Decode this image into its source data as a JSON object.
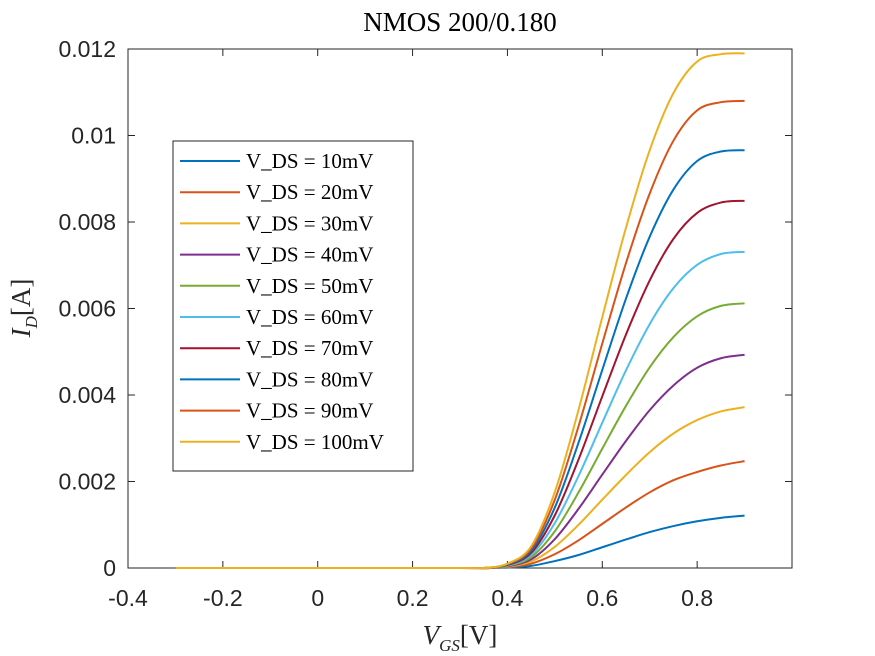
{
  "chart_data": {
    "type": "line",
    "title": "NMOS 200/0.180",
    "xlabel": "V_GS[V]",
    "ylabel": "I_D[A]",
    "xlim": [
      -0.4,
      1.0
    ],
    "ylim": [
      0,
      0.012
    ],
    "xticks": [
      -0.4,
      -0.2,
      0,
      0.2,
      0.4,
      0.6,
      0.8
    ],
    "xtick_labels": [
      "-0.4",
      "-0.2",
      "0",
      "0.2",
      "0.4",
      "0.6",
      "0.8"
    ],
    "yticks": [
      0,
      0.002,
      0.004,
      0.006,
      0.008,
      0.01,
      0.012
    ],
    "ytick_labels": [
      "0",
      "0.002",
      "0.004",
      "0.006",
      "0.008",
      "0.01",
      "0.012"
    ],
    "grid": false,
    "legend_position": "left",
    "x": [
      -0.3,
      0.3,
      0.35,
      0.4,
      0.45,
      0.5,
      0.55,
      0.6,
      0.65,
      0.7,
      0.75,
      0.8,
      0.85,
      0.9
    ],
    "series": [
      {
        "name": "V_DS = 10mV",
        "color": "#0072BD",
        "values": [
          0,
          0,
          0,
          1e-05,
          5e-05,
          0.00016,
          0.0003,
          0.00048,
          0.00066,
          0.00083,
          0.00097,
          0.00108,
          0.00116,
          0.00121
        ]
      },
      {
        "name": "V_DS = 20mV",
        "color": "#D95319",
        "values": [
          0,
          0,
          0,
          2e-05,
          0.0001,
          0.00032,
          0.00064,
          0.00102,
          0.0014,
          0.00175,
          0.00203,
          0.00222,
          0.00237,
          0.00247
        ]
      },
      {
        "name": "V_DS = 30mV",
        "color": "#EDB120",
        "values": [
          0,
          0,
          0,
          3e-05,
          0.00015,
          0.00049,
          0.001,
          0.00158,
          0.00215,
          0.00268,
          0.00311,
          0.00342,
          0.00362,
          0.00372
        ]
      },
      {
        "name": "V_DS = 40mV",
        "color": "#7E2F8E",
        "values": [
          0,
          0,
          0,
          4e-05,
          0.0002,
          0.00067,
          0.00137,
          0.00216,
          0.00294,
          0.00365,
          0.00422,
          0.00463,
          0.00485,
          0.00493
        ]
      },
      {
        "name": "V_DS = 50mV",
        "color": "#77AC30",
        "values": [
          0,
          0,
          0,
          5e-05,
          0.00025,
          0.00085,
          0.00175,
          0.00276,
          0.00375,
          0.00464,
          0.00534,
          0.00582,
          0.00606,
          0.00612
        ]
      },
      {
        "name": "V_DS = 60mV",
        "color": "#4DBEEE",
        "values": [
          0,
          0,
          0,
          6e-05,
          0.0003,
          0.00104,
          0.00213,
          0.00336,
          0.00457,
          0.00564,
          0.00647,
          0.00701,
          0.00726,
          0.00731
        ]
      },
      {
        "name": "V_DS = 70mV",
        "color": "#A2142F",
        "values": [
          0,
          0,
          0,
          7e-05,
          0.00035,
          0.00122,
          0.00251,
          0.00397,
          0.0054,
          0.00665,
          0.00761,
          0.00821,
          0.00845,
          0.00849
        ]
      },
      {
        "name": "V_DS = 80mV",
        "color": "#0072BD",
        "values": [
          0,
          0,
          0,
          8e-05,
          0.0004,
          0.0014,
          0.0029,
          0.00458,
          0.00623,
          0.00766,
          0.00875,
          0.00941,
          0.00963,
          0.00966
        ]
      },
      {
        "name": "V_DS = 90mV",
        "color": "#D95319",
        "values": [
          0,
          0,
          0,
          9e-05,
          0.00045,
          0.00158,
          0.00328,
          0.00519,
          0.00705,
          0.00866,
          0.00988,
          0.01058,
          0.01077,
          0.0108
        ]
      },
      {
        "name": "V_DS = 100mV",
        "color": "#EDB120",
        "values": [
          0,
          0,
          0,
          0.0001,
          0.0005,
          0.00176,
          0.00366,
          0.0058,
          0.00787,
          0.00966,
          0.01098,
          0.01171,
          0.01188,
          0.0119
        ]
      }
    ]
  }
}
